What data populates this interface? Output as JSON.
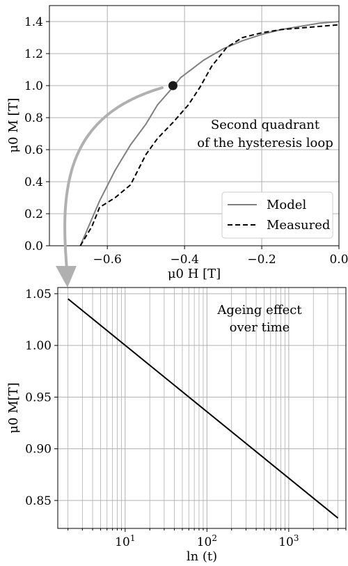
{
  "chart_data": [
    {
      "type": "line",
      "title": "",
      "xlabel": "μ0 H [T]",
      "ylabel": "μ0 M [T]",
      "xlim": [
        -0.75,
        0.0
      ],
      "ylim": [
        0.0,
        1.5
      ],
      "x_ticks": [
        -0.6,
        -0.4,
        -0.2,
        0.0
      ],
      "x_tick_labels": [
        "−0.6",
        "−0.4",
        "−0.2",
        "0.0"
      ],
      "y_ticks": [
        0.0,
        0.2,
        0.4,
        0.6,
        0.8,
        1.0,
        1.2,
        1.4
      ],
      "y_tick_labels": [
        "0.0",
        "0.2",
        "0.4",
        "0.6",
        "0.8",
        "1.0",
        "1.2",
        "1.4"
      ],
      "grid": true,
      "legend_position": "bottom-right",
      "series": [
        {
          "name": "Model",
          "color": "#808080",
          "style": "solid",
          "points": [
            [
              -0.67,
              0.0
            ],
            [
              -0.62,
              0.28
            ],
            [
              -0.58,
              0.47
            ],
            [
              -0.54,
              0.63
            ],
            [
              -0.5,
              0.76
            ],
            [
              -0.47,
              0.88
            ],
            [
              -0.43,
              0.99
            ],
            [
              -0.41,
              1.05
            ],
            [
              -0.35,
              1.16
            ],
            [
              -0.3,
              1.23
            ],
            [
              -0.25,
              1.28
            ],
            [
              -0.2,
              1.32
            ],
            [
              -0.15,
              1.35
            ],
            [
              -0.1,
              1.37
            ],
            [
              -0.05,
              1.39
            ],
            [
              0.0,
              1.4
            ]
          ]
        },
        {
          "name": "Measured",
          "color": "#000000",
          "style": "dashed",
          "points": [
            [
              -0.67,
              0.0
            ],
            [
              -0.64,
              0.12
            ],
            [
              -0.62,
              0.24
            ],
            [
              -0.58,
              0.3
            ],
            [
              -0.54,
              0.38
            ],
            [
              -0.5,
              0.57
            ],
            [
              -0.47,
              0.67
            ],
            [
              -0.43,
              0.77
            ],
            [
              -0.39,
              0.88
            ],
            [
              -0.36,
              0.99
            ],
            [
              -0.33,
              1.12
            ],
            [
              -0.29,
              1.24
            ],
            [
              -0.25,
              1.3
            ],
            [
              -0.2,
              1.33
            ],
            [
              -0.15,
              1.35
            ],
            [
              -0.1,
              1.36
            ],
            [
              -0.05,
              1.37
            ],
            [
              0.0,
              1.38
            ]
          ]
        }
      ],
      "marker": {
        "x": -0.43,
        "y": 1.0,
        "color": "#1a1a1a"
      },
      "annotation_lines": [
        "Second quadrant",
        "of the hysteresis loop"
      ]
    },
    {
      "type": "line",
      "title": "",
      "xlabel": "ln (t)",
      "ylabel": "μ0 M[T]",
      "x_scale": "log",
      "xlim": [
        1.5,
        5000
      ],
      "ylim": [
        0.823,
        1.056
      ],
      "x_ticks": [
        10,
        100,
        1000
      ],
      "x_tick_labels": [
        "10",
        "10",
        "10"
      ],
      "x_tick_exponents": [
        "1",
        "2",
        "3"
      ],
      "y_ticks": [
        0.85,
        0.9,
        0.95,
        1.0,
        1.05
      ],
      "y_tick_labels": [
        "0.85",
        "0.90",
        "0.95",
        "1.00",
        "1.05"
      ],
      "grid": true,
      "series": [
        {
          "color": "#000000",
          "style": "solid",
          "points": [
            [
              2,
              1.045
            ],
            [
              4000,
              0.833
            ]
          ]
        }
      ],
      "annotation_lines": [
        "Ageing effect",
        "over time"
      ]
    }
  ],
  "connector": {
    "color": "#b0b0b0"
  }
}
